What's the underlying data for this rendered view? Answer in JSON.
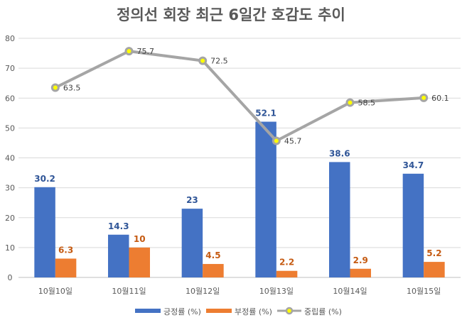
{
  "chart_data": {
    "type": "bar",
    "title": "정의선 회장 최근 6일간 호감도 추이",
    "categories": [
      "10월10일",
      "10월11일",
      "10월12일",
      "10월13일",
      "10월14일",
      "10월15일"
    ],
    "series": [
      {
        "name": "긍정률 (%)",
        "type": "bar",
        "color": "#4472C4",
        "values": [
          30.2,
          14.3,
          23,
          52.1,
          38.6,
          34.7
        ]
      },
      {
        "name": "부정률 (%)",
        "type": "bar",
        "color": "#ED7D31",
        "values": [
          6.3,
          10,
          4.5,
          2.2,
          2.9,
          5.2
        ]
      },
      {
        "name": "중립률 (%)",
        "type": "line",
        "color": "#A5A5A5",
        "marker_color": "#FFFF00",
        "values": [
          63.5,
          75.7,
          72.5,
          45.7,
          58.5,
          60.1
        ]
      }
    ],
    "yticks": [
      0,
      10,
      20,
      30,
      40,
      50,
      60,
      70,
      80
    ],
    "ylim": [
      0,
      80
    ],
    "grid": true,
    "legend": "bottom"
  }
}
